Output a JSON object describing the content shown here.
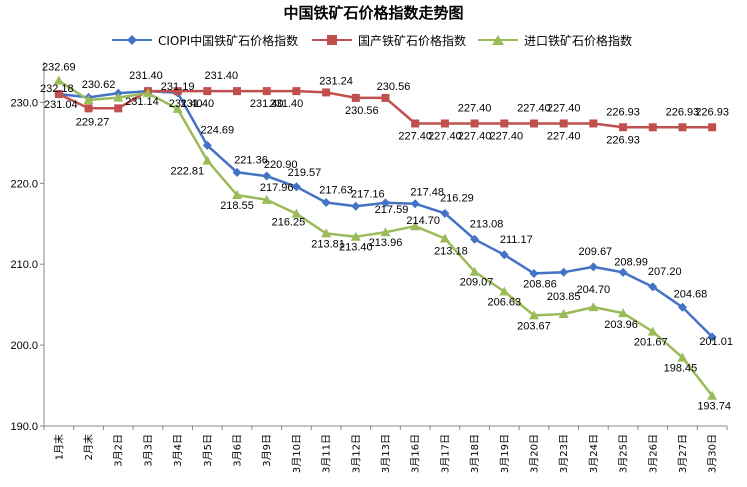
{
  "chart_data": {
    "type": "line",
    "title": "中国铁矿石价格指数走势图",
    "categories": [
      "1月末",
      "2月末",
      "3月2日",
      "3月3日",
      "3月4日",
      "3月5日",
      "3月6日",
      "3月9日",
      "3月10日",
      "3月11日",
      "3月12日",
      "3月13日",
      "3月16日",
      "3月17日",
      "3月18日",
      "3月19日",
      "3月20日",
      "3月23日",
      "3月24日",
      "3月25日",
      "3月26日",
      "3月27日",
      "3月30日"
    ],
    "ylim": [
      190,
      235
    ],
    "yticks": [
      "190.0",
      "200.0",
      "210.0",
      "220.0",
      "230.0"
    ],
    "grid": false,
    "legend_position": "top",
    "series": [
      {
        "name": "CIOPI中国铁矿石价格指数",
        "color": "#4472C4",
        "marker": "diamond",
        "values": [
          231.04,
          230.62,
          231.14,
          231.4,
          231.19,
          224.69,
          221.36,
          220.9,
          219.57,
          217.63,
          217.16,
          217.59,
          217.48,
          216.29,
          213.08,
          211.17,
          208.86,
          209.01,
          209.67,
          208.99,
          207.2,
          204.68,
          201.01
        ]
      },
      {
        "name": "国产铁矿石价格指数",
        "color": "#C0504D",
        "marker": "square",
        "values": [
          231.04,
          229.27,
          229.27,
          231.4,
          231.4,
          231.4,
          231.4,
          231.4,
          231.4,
          231.24,
          230.56,
          230.56,
          227.4,
          227.4,
          227.4,
          227.4,
          227.4,
          227.4,
          227.4,
          226.93,
          226.93,
          226.93,
          226.93
        ]
      },
      {
        "name": "进口铁矿石价格指数",
        "color": "#9BBB59",
        "marker": "triangle",
        "values": [
          232.69,
          230.3,
          230.6,
          231.14,
          229.2,
          222.81,
          218.55,
          217.96,
          216.25,
          213.81,
          213.4,
          213.96,
          214.7,
          213.18,
          209.07,
          206.63,
          203.67,
          203.85,
          204.7,
          203.96,
          201.67,
          198.45,
          193.74
        ]
      }
    ],
    "data_labels": [
      "232.69",
      "232.18",
      "231.04",
      "230.62",
      "229.27",
      "231.40",
      "231.14",
      "231.19",
      "231.40",
      "231.40",
      "224.69",
      "231.40",
      "221.36",
      "220.90",
      "222.81",
      "231.40",
      "231.40",
      "219.57",
      "231.24",
      "230.56",
      "218.55",
      "217.96",
      "217.63",
      "217.16",
      "230.56",
      "216.25",
      "217.48",
      "217.59",
      "227.40",
      "227.40",
      "216.29",
      "213.81",
      "213.40",
      "214.70",
      "213.96",
      "227.40",
      "227.40",
      "213.18",
      "213.08",
      "227.40",
      "227.40",
      "211.17",
      "227.40",
      "227.40",
      "209.07",
      "208.86",
      "226.93",
      "226.93",
      "209.67",
      "208.99",
      "226.93",
      "206.63",
      "203.85",
      "204.70",
      "207.20",
      "226.93",
      "203.67",
      "203.96",
      "204.68",
      "201.67",
      "201.01",
      "198.45",
      "193.74"
    ]
  }
}
